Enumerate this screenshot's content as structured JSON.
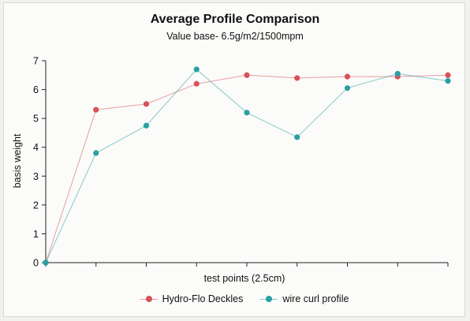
{
  "chart_data": {
    "type": "line",
    "title": "Average Profile Comparison",
    "subtitle": "Value base- 6.5g/m2/1500mpm",
    "xlabel": "test points (2.5cm)",
    "ylabel": "basis weight",
    "x": [
      0,
      1,
      2,
      3,
      4,
      5,
      6,
      7,
      8
    ],
    "ylim": [
      0,
      7
    ],
    "yticks": [
      "0",
      "1",
      "2",
      "3",
      "4",
      "5",
      "6",
      "7"
    ],
    "grid": false,
    "legend_position": "bottom",
    "series": [
      {
        "name": "Hydro-Flo Deckles",
        "color": "#d8525a",
        "values": [
          0,
          5.3,
          5.5,
          6.2,
          6.5,
          6.4,
          6.45,
          6.45,
          6.5
        ]
      },
      {
        "name": "wire curl profile",
        "color": "#2a9fa3",
        "values": [
          0,
          3.8,
          4.75,
          6.7,
          5.2,
          4.35,
          6.05,
          6.55,
          6.3
        ]
      }
    ]
  }
}
